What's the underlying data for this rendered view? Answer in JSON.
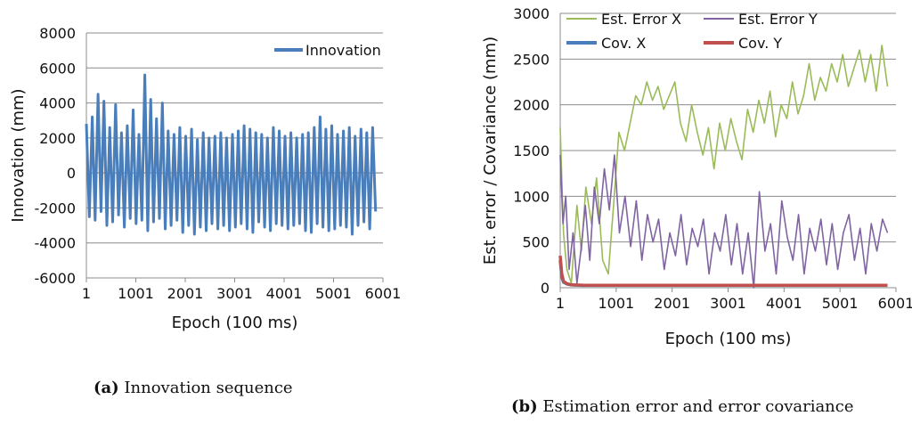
{
  "chart_data": [
    {
      "id": "a",
      "type": "line",
      "title": "",
      "xlabel": "Epoch (100 ms)",
      "ylabel": "Innovation (mm)",
      "x_ticks": [
        1,
        1001,
        2001,
        3001,
        4001,
        5001,
        6001
      ],
      "y_ticks": [
        8000,
        6000,
        4000,
        2000,
        0,
        -2000,
        -4000,
        -6000
      ],
      "xlim": [
        1,
        6001
      ],
      "ylim": [
        -6000,
        8000
      ],
      "grid": "horizontal",
      "legend_position": "top-right",
      "series": [
        {
          "name": "Innovation",
          "color": "#4a7ebb",
          "x_start": 1,
          "x_end": 5851,
          "max_abs_peak_approx": 5600,
          "typical_range": [
            -3500,
            4200
          ],
          "values": [
            2800,
            -2500,
            3200,
            -2700,
            4500,
            -2200,
            4100,
            -3000,
            2600,
            -2800,
            3900,
            -2400,
            2300,
            -3100,
            2700,
            -2600,
            3600,
            -2900,
            2200,
            -2700,
            5600,
            -3300,
            4200,
            -2800,
            3100,
            -2600,
            4000,
            -3200,
            2400,
            -3000,
            2200,
            -2700,
            2600,
            -3400,
            2100,
            -3000,
            2500,
            -3500,
            1900,
            -3100,
            2300,
            -3300,
            2000,
            -2900,
            2100,
            -3200,
            2300,
            -3000,
            2000,
            -3300,
            2200,
            -3100,
            2400,
            -2900,
            2700,
            -3200,
            2500,
            -3400,
            2300,
            -2800,
            2200,
            -3100,
            2000,
            -3300,
            2600,
            -2900,
            2400,
            -3000,
            2100,
            -3200,
            2300,
            -3000,
            2000,
            -2900,
            2200,
            -3300,
            2300,
            -3400,
            2600,
            -2900,
            3200,
            -3100,
            2500,
            -3300,
            2700,
            -3200,
            2200,
            -3000,
            2400,
            -3100,
            2600,
            -3500,
            2100,
            -3000,
            2500,
            -2800,
            2300,
            -3200,
            2600,
            -2200
          ]
        }
      ]
    },
    {
      "id": "b",
      "type": "line",
      "title": "",
      "xlabel": "Epoch (100 ms)",
      "ylabel": "Est. error / Covariance  (mm)",
      "x_ticks": [
        1,
        1001,
        2001,
        3001,
        4001,
        5001,
        6001
      ],
      "y_ticks": [
        3000,
        2500,
        2000,
        1500,
        1000,
        500,
        0
      ],
      "xlim": [
        1,
        6001
      ],
      "ylim": [
        0,
        3000
      ],
      "grid": "horizontal",
      "legend_position": "top",
      "series": [
        {
          "name": "Est. Error X",
          "color": "#9bbb59",
          "x": [
            1,
            60,
            120,
            200,
            300,
            380,
            460,
            560,
            650,
            760,
            860,
            960,
            1050,
            1150,
            1250,
            1350,
            1450,
            1550,
            1650,
            1750,
            1850,
            1950,
            2050,
            2150,
            2250,
            2350,
            2450,
            2550,
            2650,
            2750,
            2850,
            2950,
            3050,
            3150,
            3250,
            3350,
            3450,
            3550,
            3650,
            3750,
            3850,
            3950,
            4050,
            4150,
            4250,
            4350,
            4450,
            4550,
            4650,
            4750,
            4850,
            4950,
            5050,
            5150,
            5250,
            5350,
            5450,
            5550,
            5650,
            5750,
            5850
          ],
          "y": [
            1750,
            600,
            200,
            50,
            900,
            400,
            1100,
            700,
            1200,
            300,
            150,
            950,
            1700,
            1500,
            1800,
            2100,
            2000,
            2250,
            2050,
            2200,
            1950,
            2100,
            2250,
            1800,
            1600,
            2000,
            1700,
            1450,
            1750,
            1300,
            1800,
            1500,
            1850,
            1600,
            1400,
            1950,
            1700,
            2050,
            1800,
            2150,
            1650,
            2000,
            1850,
            2250,
            1900,
            2100,
            2450,
            2050,
            2300,
            2150,
            2450,
            2250,
            2550,
            2200,
            2400,
            2600,
            2250,
            2550,
            2150,
            2650,
            2200
          ]
        },
        {
          "name": "Est. Error Y",
          "color": "#8064a2",
          "x": [
            1,
            50,
            100,
            160,
            230,
            300,
            370,
            450,
            530,
            610,
            700,
            790,
            880,
            970,
            1060,
            1160,
            1260,
            1360,
            1460,
            1560,
            1660,
            1760,
            1860,
            1960,
            2060,
            2160,
            2260,
            2360,
            2460,
            2560,
            2660,
            2760,
            2860,
            2960,
            3060,
            3160,
            3260,
            3360,
            3460,
            3560,
            3660,
            3760,
            3860,
            3960,
            4060,
            4160,
            4260,
            4360,
            4460,
            4560,
            4660,
            4760,
            4860,
            4960,
            5060,
            5160,
            5260,
            5360,
            5460,
            5560,
            5660,
            5760,
            5850
          ],
          "y": [
            1450,
            700,
            1000,
            200,
            600,
            50,
            400,
            900,
            300,
            1100,
            700,
            1300,
            850,
            1450,
            600,
            1000,
            450,
            950,
            300,
            800,
            500,
            750,
            200,
            600,
            350,
            800,
            250,
            650,
            450,
            750,
            150,
            600,
            400,
            800,
            250,
            700,
            150,
            600,
            0,
            1050,
            400,
            700,
            150,
            950,
            550,
            300,
            800,
            150,
            650,
            400,
            750,
            250,
            700,
            200,
            600,
            800,
            300,
            650,
            150,
            700,
            400,
            750,
            600
          ]
        },
        {
          "name": "Cov. X",
          "color": "#4a7ebb",
          "x": [
            1,
            30,
            60,
            120,
            200,
            400,
            800,
            1600,
            3000,
            4500,
            5850
          ],
          "y": [
            300,
            120,
            60,
            40,
            30,
            25,
            25,
            25,
            25,
            25,
            25
          ]
        },
        {
          "name": "Cov. Y",
          "color": "#c0504d",
          "x": [
            1,
            30,
            60,
            120,
            200,
            400,
            800,
            1600,
            3000,
            4500,
            5850
          ],
          "y": [
            350,
            150,
            70,
            45,
            32,
            28,
            27,
            27,
            27,
            27,
            27
          ]
        }
      ]
    }
  ],
  "captions": {
    "a_label": "(a)",
    "a_text": " Innovation sequence",
    "b_label": "(b)",
    "b_text": " Estimation error and error covariance"
  }
}
